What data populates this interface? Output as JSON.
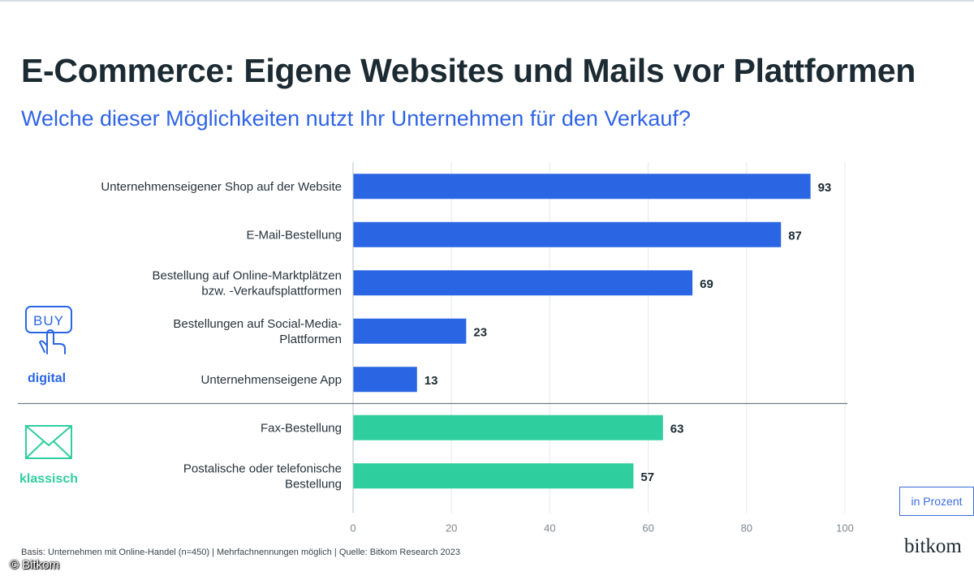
{
  "header": {
    "title": "E-Commerce: Eigene Websites und Mails vor Plattformen",
    "subtitle": "Welche dieser Möglichkeiten nutzt Ihr Unternehmen für den Verkauf?"
  },
  "groups": {
    "digital": {
      "label": "digital",
      "icon": "buy-hand-icon",
      "color": "#2a66e3"
    },
    "klassisch": {
      "label": "klassisch",
      "icon": "envelope-icon",
      "color": "#2fce9e"
    }
  },
  "unit_box": "in Prozent",
  "footnote": "Basis: Unternehmen mit Online-Handel (n=450) | Mehrfachnennungen möglich | Quelle: Bitkom Research 2023",
  "brand": "bitkom",
  "copyright": "© Bitkom",
  "chart_data": {
    "type": "bar",
    "orientation": "horizontal",
    "categories": [
      [
        "Unternehmenseigener Shop auf der Website"
      ],
      [
        "E-Mail-Bestellung"
      ],
      [
        "Bestellung auf Online-Marktplätzen",
        "bzw. -Verkaufsplattformen"
      ],
      [
        "Bestellungen auf Social-Media-",
        "Plattformen"
      ],
      [
        "Unternehmenseigene App"
      ],
      [
        "Fax-Bestellung"
      ],
      [
        "Postalische oder telefonische",
        "Bestellung"
      ]
    ],
    "values": [
      93,
      87,
      69,
      23,
      13,
      63,
      57
    ],
    "groups": [
      "digital",
      "digital",
      "digital",
      "digital",
      "digital",
      "klassisch",
      "klassisch"
    ],
    "xlim": [
      0,
      100
    ],
    "xticks": [
      0,
      20,
      40,
      60,
      80,
      100
    ],
    "grid": true,
    "colors": {
      "digital": "#2a66e3",
      "klassisch": "#2fce9e"
    }
  }
}
